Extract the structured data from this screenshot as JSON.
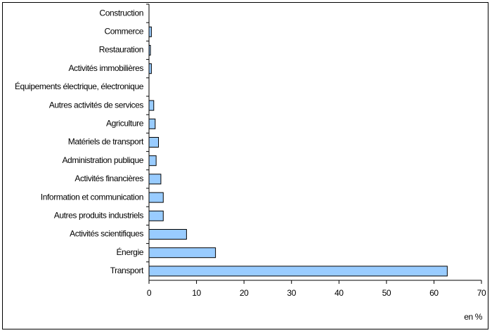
{
  "chart_data": {
    "type": "hbar",
    "categories": [
      "Construction",
      "Commerce",
      "Restauration",
      "Activités immobilières",
      "Équipements électrique, électronique",
      "Autres activités de services",
      "Agriculture",
      "Matériels de transport",
      "Administration publique",
      "Activités financières",
      "Information et communication",
      "Autres produits industriels",
      "Activités scientifiques",
      "Énergie",
      "Transport"
    ],
    "values": [
      0,
      0.5,
      0.3,
      0.5,
      0,
      1.0,
      1.3,
      2.0,
      1.5,
      2.5,
      3.0,
      3.0,
      7.9,
      14.0,
      62.8
    ],
    "color": "#99ccff",
    "xlim": [
      0,
      70
    ],
    "xticks": [
      0,
      10,
      20,
      30,
      40,
      50,
      60,
      70
    ],
    "xlabel": "en %"
  }
}
